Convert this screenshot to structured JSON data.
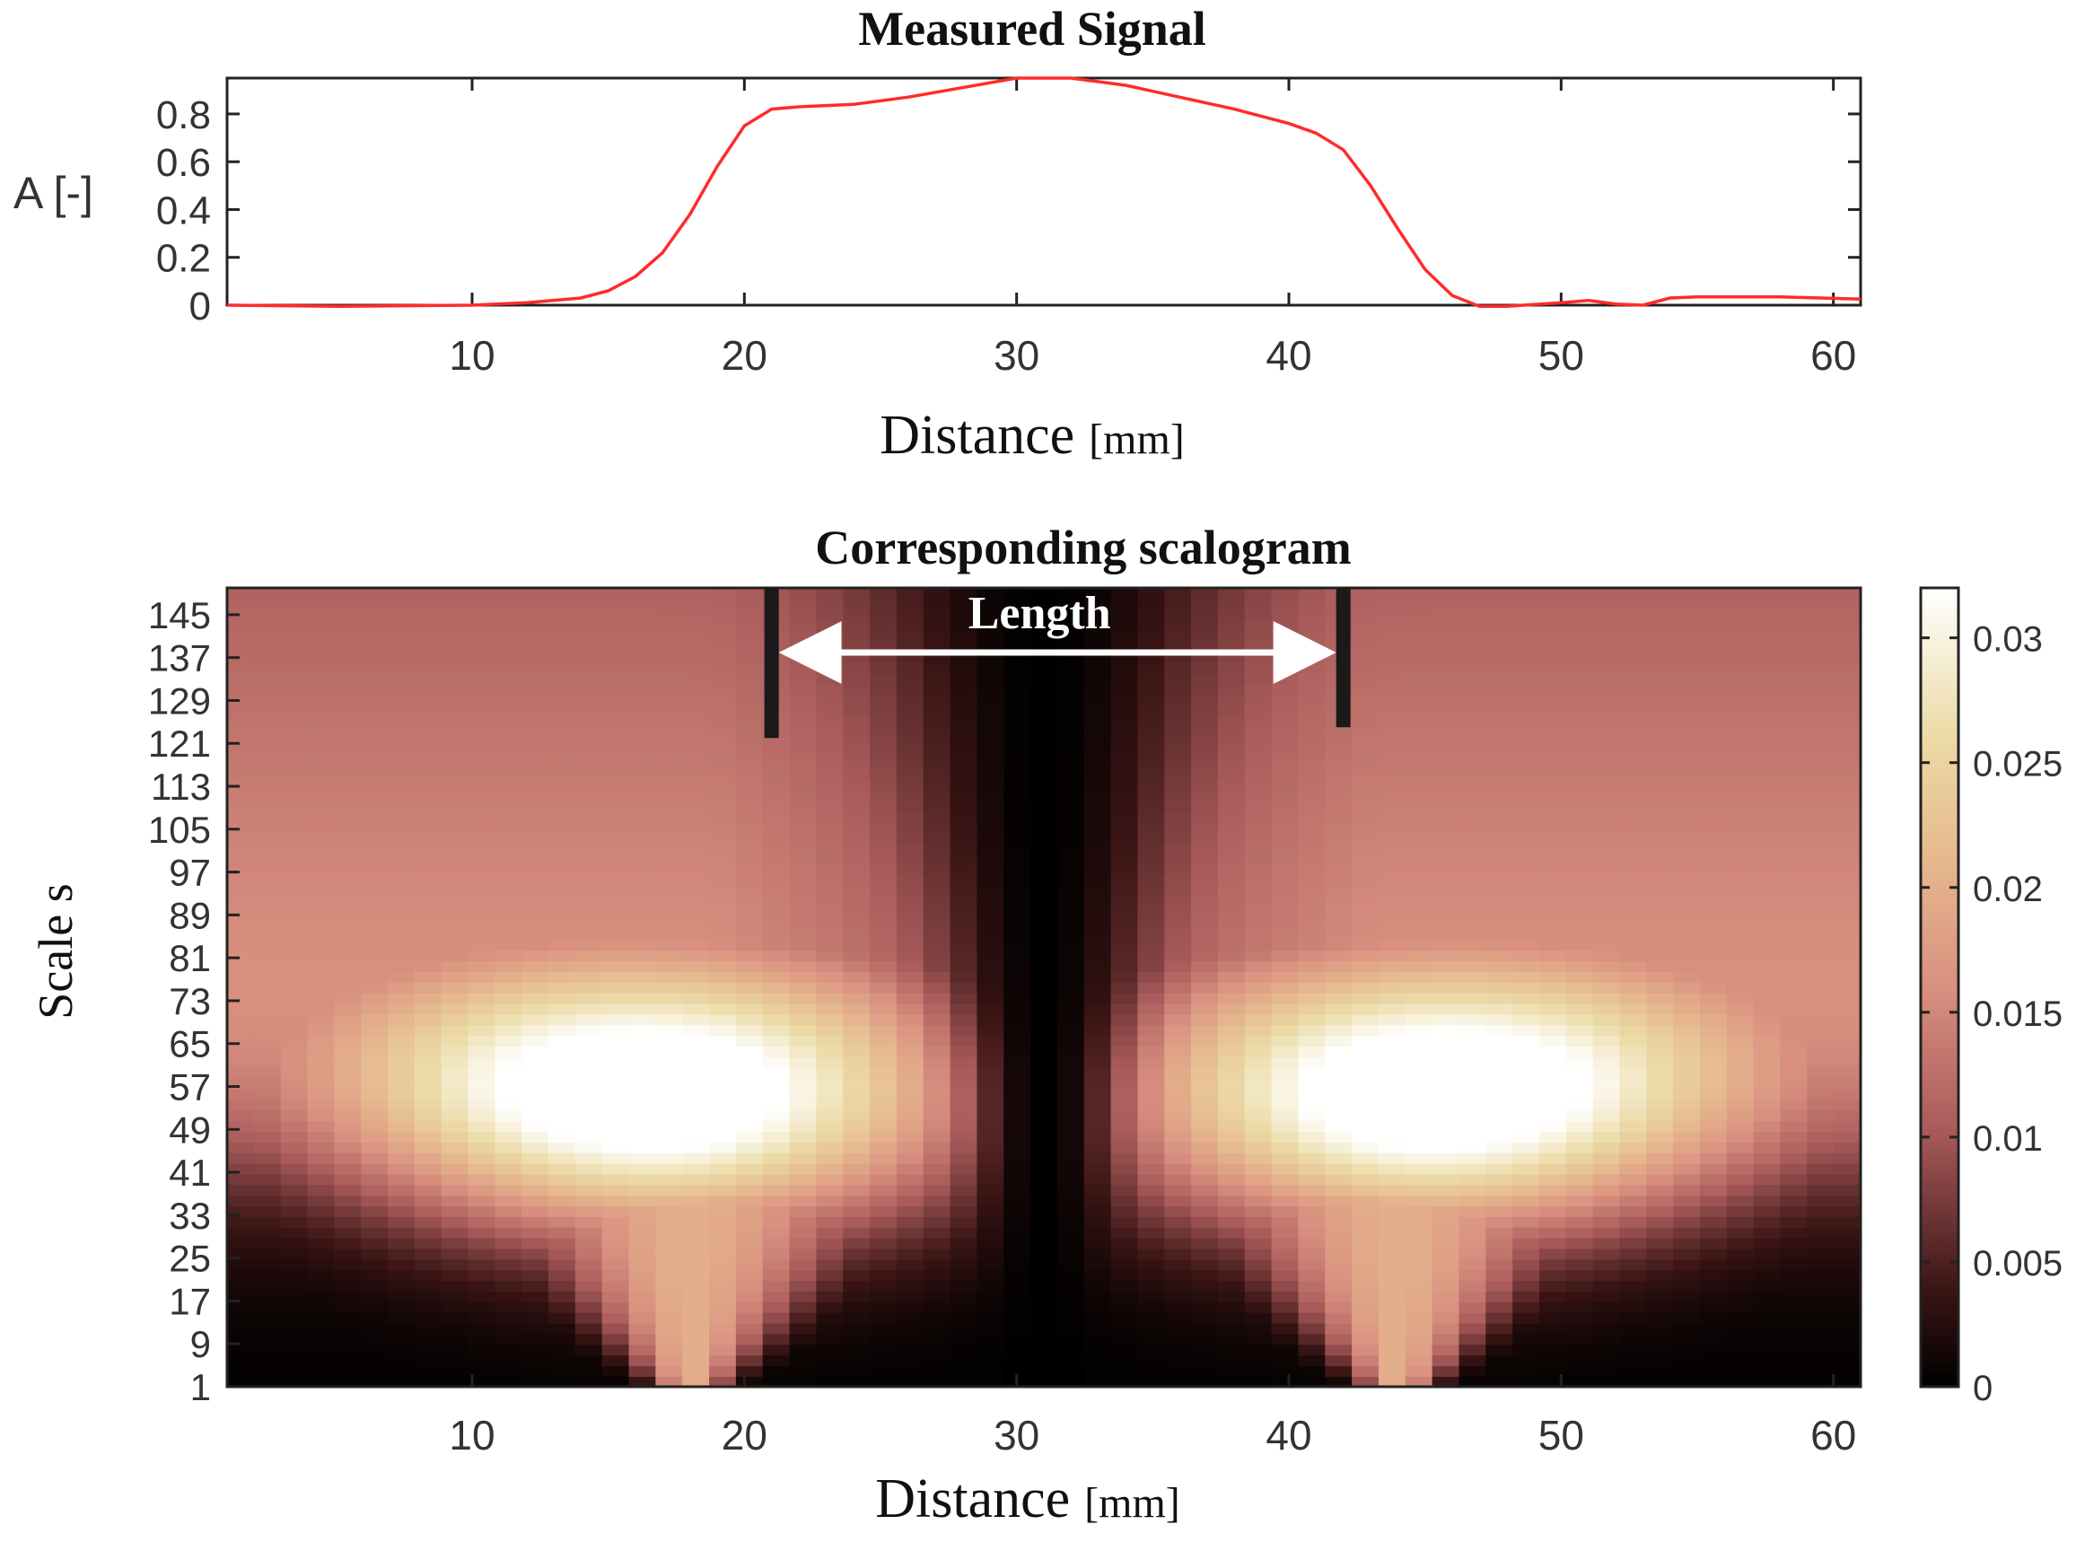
{
  "colors": {
    "signal_line": "#ff2b2b",
    "axes": "#222222",
    "marker": "#1a1a1a",
    "arrow": "#ffffff"
  },
  "chart_data": [
    {
      "type": "line",
      "title": "Measured Signal",
      "xlabel": "Distance",
      "xlabel_unit": "[mm]",
      "ylabel": "A [-]",
      "xlim": [
        1,
        61
      ],
      "ylim": [
        0,
        0.95
      ],
      "xticks": [
        "10",
        "20",
        "30",
        "40",
        "50",
        "60"
      ],
      "yticks": [
        "0",
        "0.2",
        "0.4",
        "0.6",
        "0.8"
      ],
      "ytick_values": [
        0,
        0.2,
        0.4,
        0.6,
        0.8
      ],
      "xtick_values": [
        10,
        20,
        30,
        40,
        50,
        60
      ],
      "series": [
        {
          "name": "Measured Signal",
          "x": [
            1,
            5,
            10,
            12,
            14,
            15,
            16,
            17,
            18,
            19,
            20,
            21,
            22,
            24,
            26,
            28,
            30,
            32,
            34,
            36,
            38,
            40,
            41,
            42,
            43,
            44,
            45,
            46,
            47,
            48,
            50,
            51,
            52,
            53,
            54,
            55,
            58,
            61
          ],
          "y": [
            0.0,
            -0.005,
            0.0,
            0.01,
            0.03,
            0.06,
            0.12,
            0.22,
            0.38,
            0.58,
            0.75,
            0.82,
            0.83,
            0.84,
            0.87,
            0.91,
            0.95,
            0.95,
            0.92,
            0.87,
            0.82,
            0.76,
            0.72,
            0.65,
            0.5,
            0.32,
            0.15,
            0.04,
            -0.005,
            -0.005,
            0.01,
            0.02,
            0.005,
            0.0,
            0.03,
            0.035,
            0.035,
            0.025
          ]
        }
      ]
    },
    {
      "type": "heatmap",
      "title": "Corresponding scalogram",
      "xlabel": "Distance",
      "xlabel_unit": "[mm]",
      "ylabel": "Scale  s",
      "xlim": [
        1,
        61
      ],
      "ylim": [
        1,
        150
      ],
      "xticks": [
        "10",
        "20",
        "30",
        "40",
        "50",
        "60"
      ],
      "xtick_values": [
        10,
        20,
        30,
        40,
        50,
        60
      ],
      "yticks": [
        "1",
        "9",
        "17",
        "25",
        "33",
        "41",
        "49",
        "57",
        "65",
        "73",
        "81",
        "89",
        "97",
        "105",
        "113",
        "121",
        "129",
        "137",
        "145"
      ],
      "ytick_values": [
        1,
        9,
        17,
        25,
        33,
        41,
        49,
        57,
        65,
        73,
        81,
        89,
        97,
        105,
        113,
        121,
        129,
        137,
        145
      ],
      "colorbar": {
        "range": [
          0,
          0.032
        ],
        "ticks": [
          "0",
          "0.005",
          "0.01",
          "0.015",
          "0.02",
          "0.025",
          "0.03"
        ],
        "tick_values": [
          0,
          0.005,
          0.01,
          0.015,
          0.02,
          0.025,
          0.03
        ]
      },
      "annotation": {
        "label": "Length",
        "start_mm": 21,
        "end_mm": 42,
        "marker_scale_bottom": 122
      },
      "peaks": [
        {
          "x_mm": 18,
          "scale": 55,
          "value": 0.032
        },
        {
          "x_mm": 44,
          "scale": 55,
          "value": 0.032
        }
      ],
      "minimum_ridge_x_mm": 31
    }
  ]
}
